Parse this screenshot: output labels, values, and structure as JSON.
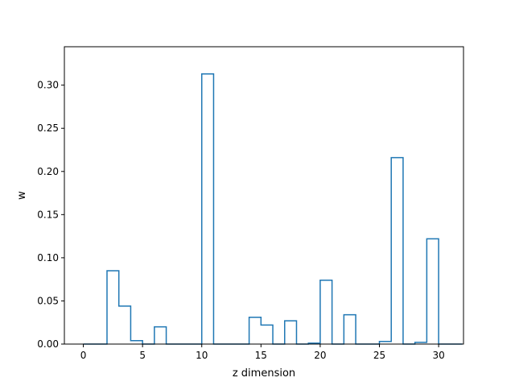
{
  "chart_data": {
    "type": "bar",
    "style": "step-histogram",
    "xlabel": "z dimension",
    "ylabel": "w",
    "xlim": [
      -1.6,
      32.1
    ],
    "ylim": [
      0,
      0.3445
    ],
    "x_ticks": [
      0,
      5,
      10,
      15,
      20,
      25,
      30
    ],
    "y_ticks": [
      0.0,
      0.05,
      0.1,
      0.15,
      0.2,
      0.25,
      0.3
    ],
    "y_tick_labels": [
      "0.00",
      "0.05",
      "0.10",
      "0.15",
      "0.20",
      "0.25",
      "0.30"
    ],
    "x_tick_labels": [
      "0",
      "5",
      "10",
      "15",
      "20",
      "25",
      "30"
    ],
    "grid": false,
    "series": [
      {
        "color": "#1f77b4",
        "x": [
          0,
          1,
          2,
          3,
          4,
          5,
          6,
          7,
          8,
          9,
          10,
          11,
          12,
          13,
          14,
          15,
          16,
          17,
          18,
          19,
          20,
          21,
          22,
          23,
          24,
          25,
          26,
          27,
          28,
          29,
          30,
          31
        ],
        "values": [
          0.0,
          0.0,
          0.085,
          0.044,
          0.004,
          0.0,
          0.02,
          0.0,
          0.0,
          0.0,
          0.313,
          0.0,
          0.0,
          0.0,
          0.031,
          0.022,
          0.0,
          0.027,
          0.0,
          0.001,
          0.074,
          0.0,
          0.034,
          0.0,
          0.0,
          0.003,
          0.216,
          0.0,
          0.002,
          0.122,
          0.0,
          0.0
        ]
      }
    ]
  }
}
